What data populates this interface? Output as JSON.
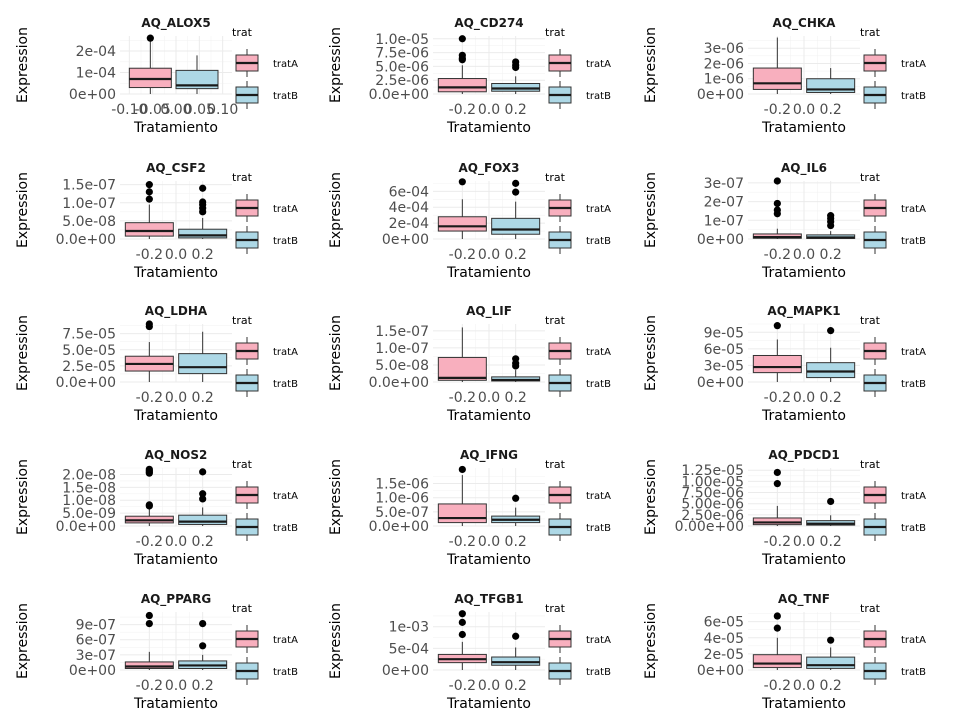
{
  "figure": {
    "x_label": "Tratamiento",
    "y_label": "Expression",
    "legend_title": "trat",
    "legend_labels": [
      "tratA",
      "tratB"
    ],
    "colors": {
      "tratA": "#F8AFBE",
      "tratB": "#ADD8E6"
    }
  },
  "chart_data": [
    {
      "type": "box",
      "title": "AQ_ALOX5",
      "ylim": [
        0,
        0.00027
      ],
      "yticks": [
        0,
        0.0001,
        0.0002
      ],
      "ytick_labels": [
        "0e+00",
        "1e-04",
        "2e-04"
      ],
      "xticks": [
        -0.1,
        -0.05,
        0,
        0.05,
        0.1
      ],
      "xtick_labels": [
        "-0.10",
        "-0.05",
        "0.00",
        "0.05",
        "0.10"
      ],
      "xlim": [
        -0.12,
        0.12
      ],
      "groups": [
        {
          "name": "tratA",
          "x": -0.055,
          "width": 0.09,
          "whisker_low": 0,
          "q1": 3e-05,
          "median": 7e-05,
          "q3": 0.00012,
          "whisker_high": 0.00025,
          "outliers": [
            0.00026
          ]
        },
        {
          "name": "tratB",
          "x": 0.045,
          "width": 0.09,
          "whisker_low": 0,
          "q1": 2.5e-05,
          "median": 4e-05,
          "q3": 0.00011,
          "whisker_high": 0.00018,
          "outliers": []
        }
      ]
    },
    {
      "type": "box",
      "title": "AQ_CD274",
      "ylim": [
        0,
        1.05e-05
      ],
      "yticks": [
        0,
        2.5e-06,
        5e-06,
        7.5e-06,
        1e-05
      ],
      "ytick_labels": [
        "0.0e+00",
        "2.5e-06",
        "5.0e-06",
        "7.5e-06",
        "1.0e-05"
      ],
      "xticks": [
        -0.2,
        0,
        0.2
      ],
      "xtick_labels": [
        "-0.2",
        "0.0",
        "0.2"
      ],
      "xlim": [
        -0.42,
        0.42
      ],
      "groups": [
        {
          "name": "tratA",
          "x": -0.2,
          "width": 0.36,
          "whisker_low": 0,
          "q1": 4e-07,
          "median": 1.2e-06,
          "q3": 2.8e-06,
          "whisker_high": 5.2e-06,
          "outliers": [
            6.2e-06,
            6.5e-06,
            7e-06,
            1e-05
          ]
        },
        {
          "name": "tratB",
          "x": 0.2,
          "width": 0.36,
          "whisker_low": 0,
          "q1": 5e-07,
          "median": 1e-06,
          "q3": 1.9e-06,
          "whisker_high": 3.2e-06,
          "outliers": [
            4.8e-06,
            5.2e-06,
            5.8e-06
          ]
        }
      ]
    },
    {
      "type": "box",
      "title": "AQ_CHKA",
      "ylim": [
        0,
        3.8e-06
      ],
      "yticks": [
        0,
        1e-06,
        2e-06,
        3e-06
      ],
      "ytick_labels": [
        "0e+00",
        "1e-06",
        "2e-06",
        "3e-06"
      ],
      "xticks": [
        -0.2,
        0,
        0.2
      ],
      "xtick_labels": [
        "-0.2",
        "0.0",
        "0.2"
      ],
      "xlim": [
        -0.42,
        0.42
      ],
      "groups": [
        {
          "name": "tratA",
          "x": -0.2,
          "width": 0.36,
          "whisker_low": 0,
          "q1": 3e-07,
          "median": 7e-07,
          "q3": 1.7e-06,
          "whisker_high": 3.7e-06,
          "outliers": []
        },
        {
          "name": "tratB",
          "x": 0.2,
          "width": 0.36,
          "whisker_low": 0,
          "q1": 1e-07,
          "median": 3e-07,
          "q3": 1e-06,
          "whisker_high": 1.7e-06,
          "outliers": []
        }
      ]
    },
    {
      "type": "box",
      "title": "AQ_CSF2",
      "ylim": [
        0,
        1.6e-07
      ],
      "yticks": [
        0,
        5e-08,
        1e-07,
        1.5e-07
      ],
      "ytick_labels": [
        "0.0e+00",
        "5.0e-08",
        "1.0e-07",
        "1.5e-07"
      ],
      "xticks": [
        -0.2,
        0,
        0.2
      ],
      "xtick_labels": [
        "-0.2",
        "0.0",
        "0.2"
      ],
      "xlim": [
        -0.42,
        0.42
      ],
      "groups": [
        {
          "name": "tratA",
          "x": -0.2,
          "width": 0.36,
          "whisker_low": 0,
          "q1": 8e-09,
          "median": 2.2e-08,
          "q3": 4.5e-08,
          "whisker_high": 9.5e-08,
          "outliers": [
            1.1e-07,
            1.3e-07,
            1.5e-07
          ]
        },
        {
          "name": "tratB",
          "x": 0.2,
          "width": 0.36,
          "whisker_low": 0,
          "q1": 3e-09,
          "median": 1e-08,
          "q3": 2.7e-08,
          "whisker_high": 5.8e-08,
          "outliers": [
            7.5e-08,
            8.5e-08,
            9.5e-08,
            1.02e-07,
            1.4e-07
          ]
        }
      ]
    },
    {
      "type": "box",
      "title": "AQ_FOX3",
      "ylim": [
        0,
        0.00073
      ],
      "yticks": [
        0,
        0.0002,
        0.0004,
        0.0006
      ],
      "ytick_labels": [
        "0e+00",
        "2e-04",
        "4e-04",
        "6e-04"
      ],
      "xticks": [
        -0.2,
        0,
        0.2
      ],
      "xtick_labels": [
        "-0.2",
        "0.0",
        "0.2"
      ],
      "xlim": [
        -0.42,
        0.42
      ],
      "groups": [
        {
          "name": "tratA",
          "x": -0.2,
          "width": 0.36,
          "whisker_low": 0,
          "q1": 0.0001,
          "median": 0.00016,
          "q3": 0.00028,
          "whisker_high": 0.0005,
          "outliers": [
            0.00072
          ]
        },
        {
          "name": "tratB",
          "x": 0.2,
          "width": 0.36,
          "whisker_low": 0,
          "q1": 6e-05,
          "median": 0.00012,
          "q3": 0.00026,
          "whisker_high": 0.00047,
          "outliers": [
            0.00059,
            0.0007
          ]
        }
      ]
    },
    {
      "type": "box",
      "title": "AQ_IL6",
      "ylim": [
        0,
        3.1e-07
      ],
      "yticks": [
        0,
        1e-07,
        2e-07,
        3e-07
      ],
      "ytick_labels": [
        "0e+00",
        "1e-07",
        "2e-07",
        "3e-07"
      ],
      "xticks": [
        -0.2,
        0,
        0.2
      ],
      "xtick_labels": [
        "-0.2",
        "0.0",
        "0.2"
      ],
      "xlim": [
        -0.42,
        0.42
      ],
      "groups": [
        {
          "name": "tratA",
          "x": -0.2,
          "width": 0.36,
          "whisker_low": 0,
          "q1": 4e-09,
          "median": 1e-08,
          "q3": 2.7e-08,
          "whisker_high": 5.5e-08,
          "outliers": [
            1.35e-07,
            1.55e-07,
            1.9e-07,
            3.1e-07
          ]
        },
        {
          "name": "tratB",
          "x": 0.2,
          "width": 0.36,
          "whisker_low": 0,
          "q1": 3e-09,
          "median": 8e-09,
          "q3": 2.2e-08,
          "whisker_high": 4.2e-08,
          "outliers": [
            7.2e-08,
            9.2e-08,
            1.1e-07,
            1.25e-07
          ]
        }
      ]
    },
    {
      "type": "box",
      "title": "AQ_LDHA",
      "ylim": [
        0,
        9e-05
      ],
      "yticks": [
        0,
        2.5e-05,
        5e-05,
        7.5e-05
      ],
      "ytick_labels": [
        "0.0e+00",
        "2.5e-05",
        "5.0e-05",
        "7.5e-05"
      ],
      "xticks": [
        -0.2,
        0,
        0.2
      ],
      "xtick_labels": [
        "-0.2",
        "0.0",
        "0.2"
      ],
      "xlim": [
        -0.42,
        0.42
      ],
      "groups": [
        {
          "name": "tratA",
          "x": -0.2,
          "width": 0.36,
          "whisker_low": 0,
          "q1": 1.7e-05,
          "median": 2.8e-05,
          "q3": 4e-05,
          "whisker_high": 6.2e-05,
          "outliers": [
            8.6e-05,
            9e-05
          ]
        },
        {
          "name": "tratB",
          "x": 0.2,
          "width": 0.36,
          "whisker_low": 0,
          "q1": 1.3e-05,
          "median": 2.3e-05,
          "q3": 4.4e-05,
          "whisker_high": 7.8e-05,
          "outliers": []
        }
      ]
    },
    {
      "type": "box",
      "title": "AQ_LIF",
      "ylim": [
        0,
        1.7e-07
      ],
      "yticks": [
        0,
        5e-08,
        1e-07,
        1.5e-07
      ],
      "ytick_labels": [
        "0.0e+00",
        "5.0e-08",
        "1.0e-07",
        "1.5e-07"
      ],
      "xticks": [
        -0.2,
        0,
        0.2
      ],
      "xtick_labels": [
        "-0.2",
        "0.0",
        "0.2"
      ],
      "xlim": [
        -0.42,
        0.42
      ],
      "groups": [
        {
          "name": "tratA",
          "x": -0.2,
          "width": 0.36,
          "whisker_low": 0,
          "q1": 5e-09,
          "median": 1.2e-08,
          "q3": 7.2e-08,
          "whisker_high": 1.6e-07,
          "outliers": []
        },
        {
          "name": "tratB",
          "x": 0.2,
          "width": 0.36,
          "whisker_low": 0,
          "q1": 3e-09,
          "median": 6e-09,
          "q3": 1.5e-08,
          "whisker_high": 3.5e-08,
          "outliers": [
            4.7e-08,
            5.5e-08,
            6.8e-08
          ]
        }
      ]
    },
    {
      "type": "box",
      "title": "AQ_MAPK1",
      "ylim": [
        0,
        0.000105
      ],
      "yticks": [
        0,
        3e-05,
        6e-05,
        9e-05
      ],
      "ytick_labels": [
        "0e+00",
        "3e-05",
        "6e-05",
        "9e-05"
      ],
      "xticks": [
        -0.2,
        0,
        0.2
      ],
      "xtick_labels": [
        "-0.2",
        "0.0",
        "0.2"
      ],
      "xlim": [
        -0.42,
        0.42
      ],
      "groups": [
        {
          "name": "tratA",
          "x": -0.2,
          "width": 0.36,
          "whisker_low": 0,
          "q1": 1.7e-05,
          "median": 2.7e-05,
          "q3": 4.8e-05,
          "whisker_high": 7.7e-05,
          "outliers": [
            0.000102
          ]
        },
        {
          "name": "tratB",
          "x": 0.2,
          "width": 0.36,
          "whisker_low": 0,
          "q1": 8e-06,
          "median": 1.9e-05,
          "q3": 3.5e-05,
          "whisker_high": 6.2e-05,
          "outliers": [
            9.3e-05
          ]
        }
      ]
    },
    {
      "type": "box",
      "title": "AQ_NOS2",
      "ylim": [
        0,
        2.25e-08
      ],
      "yticks": [
        0,
        5e-09,
        1e-08,
        1.5e-08,
        2e-08
      ],
      "ytick_labels": [
        "0.0e+00",
        "5.0e-09",
        "1.0e-08",
        "1.5e-08",
        "2.0e-08"
      ],
      "xticks": [
        -0.2,
        0,
        0.2
      ],
      "xtick_labels": [
        "-0.2",
        "0.0",
        "0.2"
      ],
      "xlim": [
        -0.42,
        0.42
      ],
      "groups": [
        {
          "name": "tratA",
          "x": -0.2,
          "width": 0.36,
          "whisker_low": 0,
          "q1": 1.2e-09,
          "median": 2.2e-09,
          "q3": 3.8e-09,
          "whisker_high": 6.8e-09,
          "outliers": [
            7.8e-09,
            8.2e-09,
            2.05e-08,
            2.1e-08,
            2.15e-08,
            2.2e-08
          ]
        },
        {
          "name": "tratB",
          "x": 0.2,
          "width": 0.36,
          "whisker_low": 0,
          "q1": 6e-10,
          "median": 1.7e-09,
          "q3": 4.2e-09,
          "whisker_high": 7.2e-09,
          "outliers": [
            1.05e-08,
            1.25e-08,
            2.1e-08
          ]
        }
      ]
    },
    {
      "type": "box",
      "title": "AQ_IFNG",
      "ylim": [
        0,
        2.05e-06
      ],
      "yticks": [
        0,
        5e-07,
        1e-06,
        1.5e-06
      ],
      "ytick_labels": [
        "0.0e+00",
        "5.0e-07",
        "1.0e-06",
        "1.5e-06"
      ],
      "xticks": [
        -0.2,
        0,
        0.2
      ],
      "xtick_labels": [
        "-0.2",
        "0.0",
        "0.2"
      ],
      "xlim": [
        -0.42,
        0.42
      ],
      "groups": [
        {
          "name": "tratA",
          "x": -0.2,
          "width": 0.36,
          "whisker_low": 0,
          "q1": 1.2e-07,
          "median": 2.8e-07,
          "q3": 7.8e-07,
          "whisker_high": 1.8e-06,
          "outliers": [
            2e-06
          ]
        },
        {
          "name": "tratB",
          "x": 0.2,
          "width": 0.36,
          "whisker_low": 0,
          "q1": 1.2e-07,
          "median": 2.2e-07,
          "q3": 3.5e-07,
          "whisker_high": 6.5e-07,
          "outliers": [
            9.8e-07
          ]
        }
      ]
    },
    {
      "type": "box",
      "title": "AQ_PDCD1",
      "ylim": [
        0,
        1.3e-05
      ],
      "yticks": [
        0,
        2.5e-06,
        5e-06,
        7.5e-06,
        1e-05,
        1.25e-05
      ],
      "ytick_labels": [
        "0.00e+00",
        "2.50e-06",
        "5.00e-06",
        "7.50e-06",
        "1.00e-05",
        "1.25e-05"
      ],
      "xticks": [
        -0.2,
        0,
        0.2
      ],
      "xtick_labels": [
        "-0.2",
        "0.0",
        "0.2"
      ],
      "xlim": [
        -0.42,
        0.42
      ],
      "groups": [
        {
          "name": "tratA",
          "x": -0.2,
          "width": 0.36,
          "whisker_low": 0,
          "q1": 3e-07,
          "median": 8e-07,
          "q3": 1.8e-06,
          "whisker_high": 4.5e-06,
          "outliers": [
            9.5e-06,
            1.2e-05
          ]
        },
        {
          "name": "tratB",
          "x": 0.2,
          "width": 0.36,
          "whisker_low": 0,
          "q1": 2e-07,
          "median": 5e-07,
          "q3": 1.2e-06,
          "whisker_high": 2.4e-06,
          "outliers": [
            5.5e-06
          ]
        }
      ]
    },
    {
      "type": "box",
      "title": "AQ_PPARG",
      "ylim": [
        0,
        1.15e-06
      ],
      "yticks": [
        0,
        3e-07,
        6e-07,
        9e-07
      ],
      "ytick_labels": [
        "0e+00",
        "3e-07",
        "6e-07",
        "9e-07"
      ],
      "xticks": [
        -0.2,
        0,
        0.2
      ],
      "xtick_labels": [
        "-0.2",
        "0.0",
        "0.2"
      ],
      "xlim": [
        -0.42,
        0.42
      ],
      "groups": [
        {
          "name": "tratA",
          "x": -0.2,
          "width": 0.36,
          "whisker_low": 0,
          "q1": 3e-08,
          "median": 7e-08,
          "q3": 1.6e-07,
          "whisker_high": 3.6e-07,
          "outliers": [
            9.2e-07,
            1.08e-06
          ]
        },
        {
          "name": "tratB",
          "x": 0.2,
          "width": 0.36,
          "whisker_low": 0,
          "q1": 3e-08,
          "median": 9e-08,
          "q3": 1.8e-07,
          "whisker_high": 3e-07,
          "outliers": [
            4.8e-07,
            9.2e-07
          ]
        }
      ]
    },
    {
      "type": "box",
      "title": "AQ_TFGB1",
      "ylim": [
        0,
        0.00134
      ],
      "yticks": [
        0,
        0.0005,
        0.001
      ],
      "ytick_labels": [
        "0e+00",
        "5e-04",
        "1e-03"
      ],
      "xticks": [
        -0.2,
        0,
        0.2
      ],
      "xtick_labels": [
        "-0.2",
        "0.0",
        "0.2"
      ],
      "xlim": [
        -0.42,
        0.42
      ],
      "groups": [
        {
          "name": "tratA",
          "x": -0.2,
          "width": 0.36,
          "whisker_low": 0,
          "q1": 0.00017,
          "median": 0.00025,
          "q3": 0.00036,
          "whisker_high": 0.00065,
          "outliers": [
            0.00082,
            0.0011,
            0.0013
          ]
        },
        {
          "name": "tratB",
          "x": 0.2,
          "width": 0.36,
          "whisker_low": 0,
          "q1": 0.00011,
          "median": 0.00018,
          "q3": 0.0003,
          "whisker_high": 0.00052,
          "outliers": [
            0.00078
          ]
        }
      ]
    },
    {
      "type": "box",
      "title": "AQ_TNF",
      "ylim": [
        0,
        7.2e-05
      ],
      "yticks": [
        0,
        2e-05,
        4e-05,
        6e-05
      ],
      "ytick_labels": [
        "0e+00",
        "2e-05",
        "4e-05",
        "6e-05"
      ],
      "xticks": [
        -0.2,
        0,
        0.2
      ],
      "xtick_labels": [
        "-0.2",
        "0.0",
        "0.2"
      ],
      "xlim": [
        -0.42,
        0.42
      ],
      "groups": [
        {
          "name": "tratA",
          "x": -0.2,
          "width": 0.36,
          "whisker_low": 0,
          "q1": 3e-06,
          "median": 8e-06,
          "q3": 1.9e-05,
          "whisker_high": 4e-05,
          "outliers": [
            5.2e-05,
            6.7e-05
          ]
        },
        {
          "name": "tratB",
          "x": 0.2,
          "width": 0.36,
          "whisker_low": 0,
          "q1": 2e-06,
          "median": 6e-06,
          "q3": 1.6e-05,
          "whisker_high": 2.8e-05,
          "outliers": [
            3.7e-05
          ]
        }
      ]
    }
  ]
}
